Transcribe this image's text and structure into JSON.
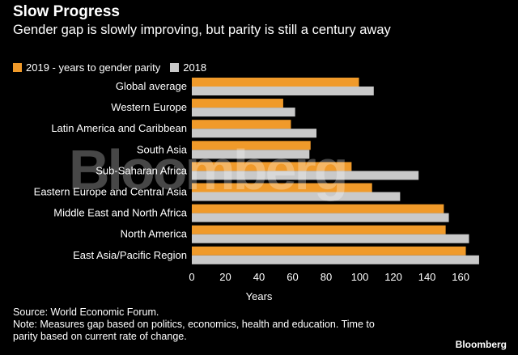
{
  "header": {
    "title": "Slow Progress",
    "subtitle": "Gender gap is slowly improving, but parity is still a century away"
  },
  "legend": {
    "items": [
      {
        "label": "2019 - years to gender parity",
        "color": "#f09a2a"
      },
      {
        "label": "2018",
        "color": "#c9c9c9"
      }
    ]
  },
  "watermark": "Bloomberg",
  "footer": {
    "source": "Source: World Economic Forum.",
    "note_line1": "Note: Measures gap based on politics, economics, health and education. Time to",
    "note_line2": "parity based on current rate of change.",
    "brand": "Bloomberg"
  },
  "chart_data": {
    "type": "bar",
    "orientation": "horizontal",
    "categories": [
      "Global average",
      "Western Europe",
      "Latin America and Caribbean",
      "South Asia",
      "Sub-Saharan Africa",
      "Eastern Europe and Central Asia",
      "Middle East and North Africa",
      "North America",
      "East Asia/Pacific Region"
    ],
    "series": [
      {
        "name": "2019 - years to gender parity",
        "color": "#f09a2a",
        "values": [
          99.5,
          54.4,
          59,
          70.7,
          95.1,
          107.3,
          150,
          151.1,
          163.1
        ]
      },
      {
        "name": "2018",
        "color": "#c9c9c9",
        "values": [
          108.3,
          61.5,
          74.2,
          70,
          135,
          124,
          153,
          165,
          171
        ]
      }
    ],
    "xticks": [
      0,
      20,
      40,
      60,
      80,
      100,
      120,
      140,
      160
    ],
    "xlim": [
      0,
      172
    ],
    "xlabel": "Years",
    "grid": false,
    "legend": "top-left"
  }
}
